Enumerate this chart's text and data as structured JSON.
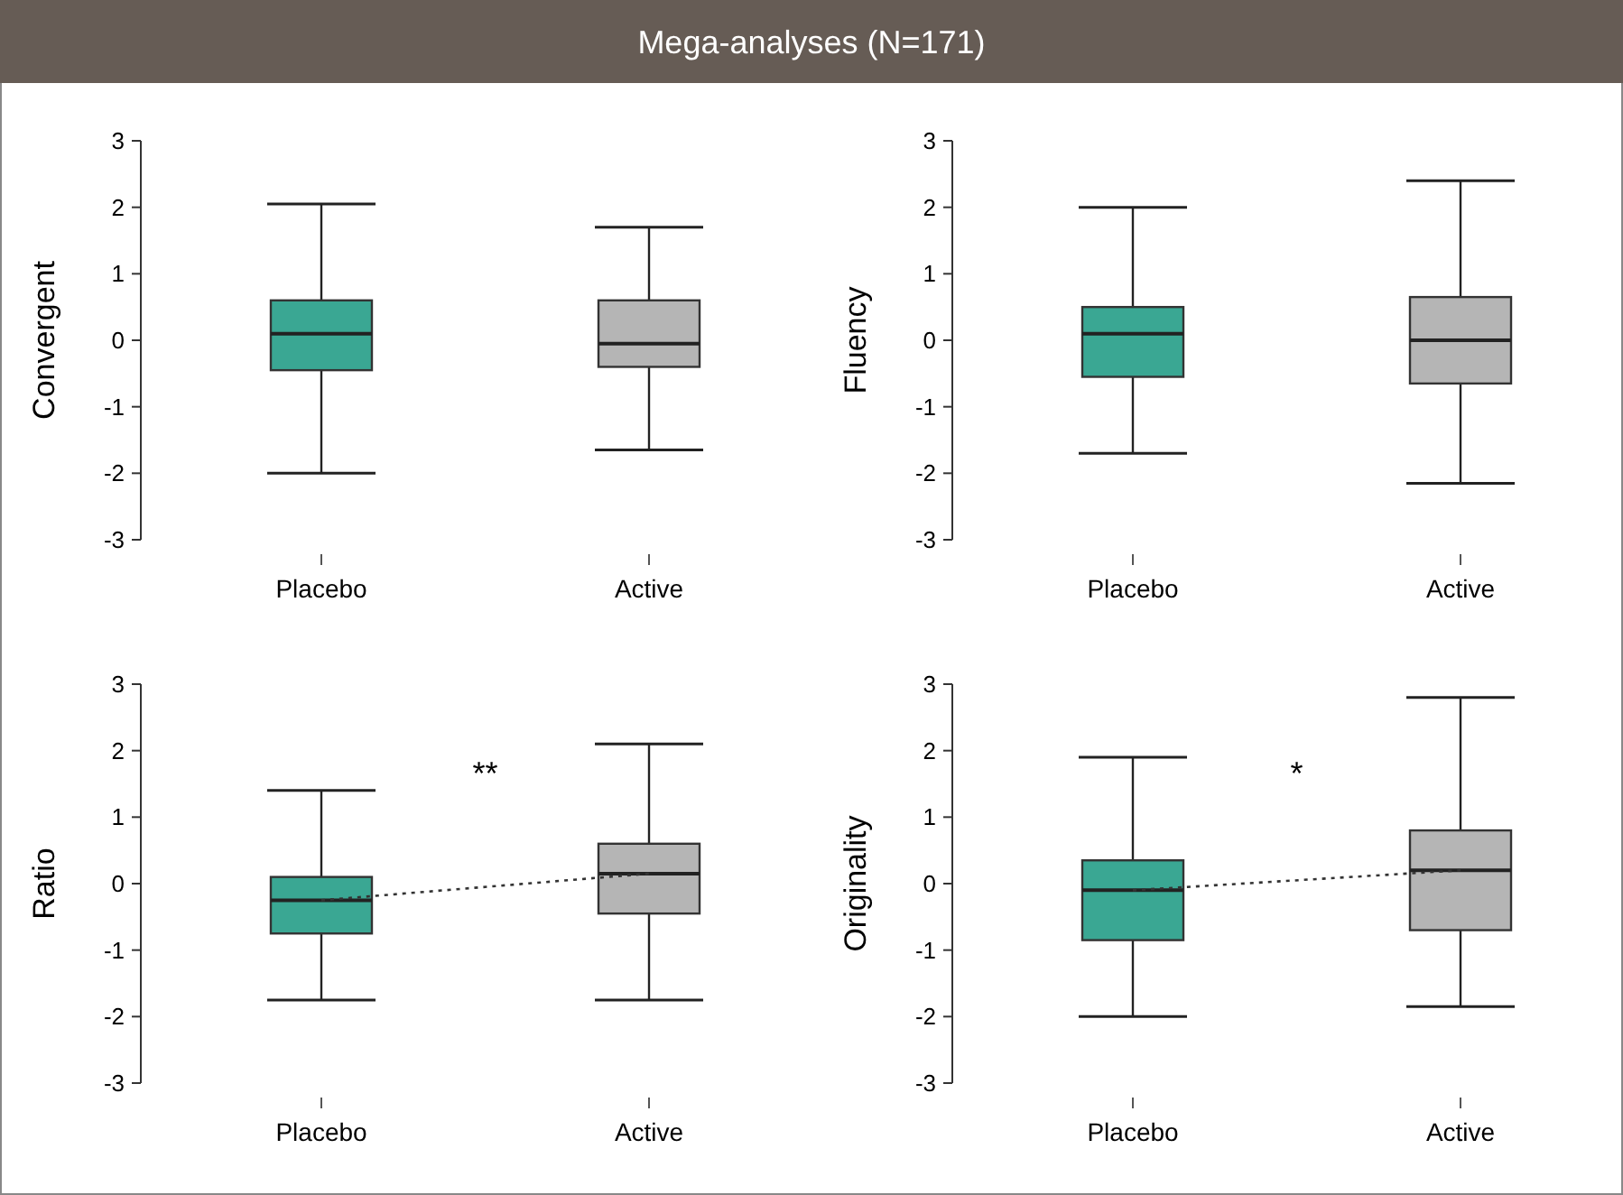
{
  "chart_data": [
    {
      "type": "box",
      "title": "Mega-analyses (N=171)",
      "ylabel": "Convergent",
      "categories": [
        "Placebo",
        "Active"
      ],
      "colors": [
        "#3aa793",
        "#b5b5b5"
      ],
      "ylim": [
        -3,
        3
      ],
      "yticks": [
        -3,
        -2,
        -1,
        0,
        1,
        2,
        3
      ],
      "boxes": [
        {
          "low": -2.0,
          "q1": -0.45,
          "median": 0.1,
          "q3": 0.6,
          "high": 2.05
        },
        {
          "low": -1.65,
          "q1": -0.4,
          "median": -0.05,
          "q3": 0.6,
          "high": 1.7
        }
      ]
    },
    {
      "type": "box",
      "ylabel": "Fluency",
      "categories": [
        "Placebo",
        "Active"
      ],
      "colors": [
        "#3aa793",
        "#b5b5b5"
      ],
      "ylim": [
        -3,
        3
      ],
      "yticks": [
        -3,
        -2,
        -1,
        0,
        1,
        2,
        3
      ],
      "boxes": [
        {
          "low": -1.7,
          "q1": -0.55,
          "median": 0.1,
          "q3": 0.5,
          "high": 2.0
        },
        {
          "low": -2.15,
          "q1": -0.65,
          "median": 0.0,
          "q3": 0.65,
          "high": 2.4
        }
      ]
    },
    {
      "type": "box",
      "ylabel": "Ratio",
      "categories": [
        "Placebo",
        "Active"
      ],
      "colors": [
        "#3aa793",
        "#b5b5b5"
      ],
      "ylim": [
        -3,
        3
      ],
      "yticks": [
        -3,
        -2,
        -1,
        0,
        1,
        2,
        3
      ],
      "annotations": [
        "**"
      ],
      "boxes": [
        {
          "low": -1.75,
          "q1": -0.75,
          "median": -0.25,
          "q3": 0.1,
          "high": 1.4
        },
        {
          "low": -1.75,
          "q1": -0.45,
          "median": 0.15,
          "q3": 0.6,
          "high": 2.1
        }
      ],
      "series": [
        {
          "type": "line",
          "line_style": "dotted",
          "color": "#333333",
          "values": [
            -0.25,
            0.15
          ]
        }
      ]
    },
    {
      "type": "box",
      "ylabel": "Originality",
      "categories": [
        "Placebo",
        "Active"
      ],
      "colors": [
        "#3aa793",
        "#b5b5b5"
      ],
      "ylim": [
        -3,
        3
      ],
      "yticks": [
        -3,
        -2,
        -1,
        0,
        1,
        2,
        3
      ],
      "annotations": [
        "*"
      ],
      "boxes": [
        {
          "low": -2.0,
          "q1": -0.85,
          "median": -0.1,
          "q3": 0.35,
          "high": 1.9
        },
        {
          "low": -1.85,
          "q1": -0.7,
          "median": 0.2,
          "q3": 0.8,
          "high": 2.8
        }
      ],
      "series": [
        {
          "type": "line",
          "line_style": "dotted",
          "color": "#333333",
          "values": [
            -0.1,
            0.2
          ]
        }
      ]
    }
  ]
}
